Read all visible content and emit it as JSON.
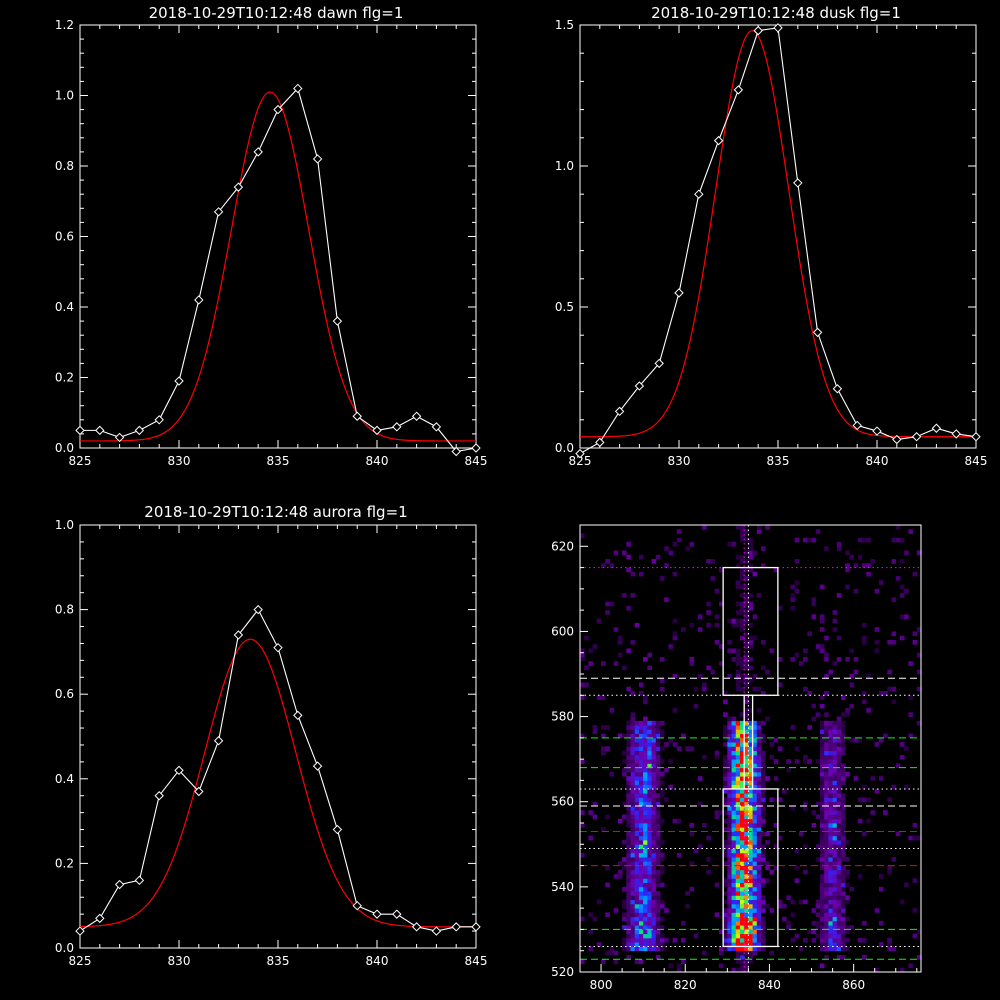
{
  "charts": {
    "dawn": {
      "type": "line",
      "title": "2018-10-29T10:12:48 dawn flg=1",
      "xlim": [
        825,
        845
      ],
      "ylim": [
        0,
        1.2
      ],
      "xticks": [
        825,
        830,
        835,
        840,
        845
      ],
      "yticks": [
        0.0,
        0.2,
        0.4,
        0.6,
        0.8,
        1.0,
        1.2
      ],
      "ytick_labels": [
        "0.0",
        "0.2",
        "0.4",
        "0.6",
        "0.8",
        "1.0",
        "1.2"
      ],
      "series": [
        {
          "kind": "data",
          "color": "#ffffff",
          "marker": "diamond",
          "x": [
            825,
            826,
            827,
            828,
            829,
            830,
            831,
            832,
            833,
            834,
            835,
            836,
            837,
            838,
            839,
            840,
            841,
            842,
            843,
            844,
            845
          ],
          "y": [
            0.05,
            0.05,
            0.03,
            0.05,
            0.08,
            0.19,
            0.42,
            0.67,
            0.74,
            0.84,
            0.96,
            1.02,
            0.82,
            0.36,
            0.09,
            0.05,
            0.06,
            0.09,
            0.06,
            -0.01,
            0.0
          ]
        },
        {
          "kind": "fit",
          "color": "#ff0000",
          "amplitude": 0.99,
          "center": 834.6,
          "sigma": 1.95,
          "offset": 0.02
        }
      ]
    },
    "dusk": {
      "type": "line",
      "title": "2018-10-29T10:12:48 dusk flg=1",
      "xlim": [
        825,
        845
      ],
      "ylim": [
        0,
        1.5
      ],
      "xticks": [
        825,
        830,
        835,
        840,
        845
      ],
      "yticks": [
        0.0,
        0.5,
        1.0,
        1.5
      ],
      "ytick_labels": [
        "0.0",
        "0.5",
        "1.0",
        "1.5"
      ],
      "series": [
        {
          "kind": "data",
          "color": "#ffffff",
          "marker": "diamond",
          "x": [
            825,
            826,
            827,
            828,
            829,
            830,
            831,
            832,
            833,
            834,
            835,
            836,
            837,
            838,
            839,
            840,
            841,
            842,
            843,
            844,
            845
          ],
          "y": [
            -0.02,
            0.02,
            0.13,
            0.22,
            0.3,
            0.55,
            0.9,
            1.09,
            1.27,
            1.48,
            1.49,
            0.94,
            0.41,
            0.21,
            0.08,
            0.06,
            0.03,
            0.04,
            0.07,
            0.05,
            0.04
          ]
        },
        {
          "kind": "fit",
          "color": "#ff0000",
          "amplitude": 1.44,
          "center": 833.7,
          "sigma": 1.85,
          "offset": 0.04
        }
      ]
    },
    "aurora": {
      "type": "line",
      "title": "2018-10-29T10:12:48 aurora flg=1",
      "xlim": [
        825,
        845
      ],
      "ylim": [
        0,
        1.0
      ],
      "xticks": [
        825,
        830,
        835,
        840,
        845
      ],
      "yticks": [
        0.0,
        0.2,
        0.4,
        0.6,
        0.8,
        1.0
      ],
      "ytick_labels": [
        "0.0",
        "0.2",
        "0.4",
        "0.6",
        "0.8",
        "1.0"
      ],
      "series": [
        {
          "kind": "data",
          "color": "#ffffff",
          "marker": "diamond",
          "x": [
            825,
            826,
            827,
            828,
            829,
            830,
            831,
            832,
            833,
            834,
            835,
            836,
            837,
            838,
            839,
            840,
            841,
            842,
            843,
            844,
            845
          ],
          "y": [
            0.04,
            0.07,
            0.15,
            0.16,
            0.36,
            0.42,
            0.37,
            0.49,
            0.74,
            0.8,
            0.71,
            0.55,
            0.43,
            0.28,
            0.1,
            0.08,
            0.08,
            0.05,
            0.04,
            0.05,
            0.05
          ]
        },
        {
          "kind": "fit",
          "color": "#ff0000",
          "amplitude": 0.68,
          "center": 833.6,
          "sigma": 2.3,
          "offset": 0.05
        }
      ]
    },
    "heatmap": {
      "type": "heatmap",
      "xlim": [
        795,
        876
      ],
      "ylim": [
        520,
        625
      ],
      "xticks": [
        800,
        820,
        840,
        860
      ],
      "yticks": [
        520,
        540,
        560,
        580,
        600,
        620
      ],
      "bands_x": [
        {
          "center": 810,
          "width": 3.5,
          "strength": 0.45
        },
        {
          "center": 834,
          "width": 3.2,
          "strength": 0.95
        },
        {
          "center": 855,
          "width": 3.0,
          "strength": 0.3
        }
      ],
      "y_active_range": [
        525,
        578
      ],
      "hlines": [
        {
          "y": 615,
          "color": "#ff00ff",
          "style": "dotted"
        },
        {
          "y": 589,
          "color": "#ffffff",
          "style": "dashed"
        },
        {
          "y": 585,
          "color": "#ffffff",
          "style": "dotted"
        },
        {
          "y": 575,
          "color": "#00ff00",
          "style": "dashed"
        },
        {
          "y": 568,
          "color": "#00ff00",
          "style": "dashed"
        },
        {
          "y": 563,
          "color": "#ffffff",
          "style": "dotted"
        },
        {
          "y": 559,
          "color": "#ffffff",
          "style": "dashed"
        },
        {
          "y": 553,
          "color": "#ff0000",
          "style": "dashed"
        },
        {
          "y": 549,
          "color": "#ffffff",
          "style": "dotted"
        },
        {
          "y": 545,
          "color": "#ff0000",
          "style": "dashed"
        },
        {
          "y": 530,
          "color": "#00ff00",
          "style": "dashed"
        },
        {
          "y": 526,
          "color": "#ffffff",
          "style": "dotted"
        },
        {
          "y": 523,
          "color": "#00ff00",
          "style": "dashed"
        }
      ],
      "vlines": [
        {
          "x": 834,
          "color": "#ff00ff",
          "style": "dotted"
        },
        {
          "x": 835,
          "color": "#ffffff",
          "style": "dotted"
        }
      ],
      "boxes": [
        {
          "x0": 829,
          "x1": 842,
          "y0": 585,
          "y1": 615
        },
        {
          "x0": 834,
          "x1": 836,
          "y0": 563,
          "y1": 585
        },
        {
          "x0": 829,
          "x1": 842,
          "y0": 526,
          "y1": 563
        }
      ]
    }
  }
}
